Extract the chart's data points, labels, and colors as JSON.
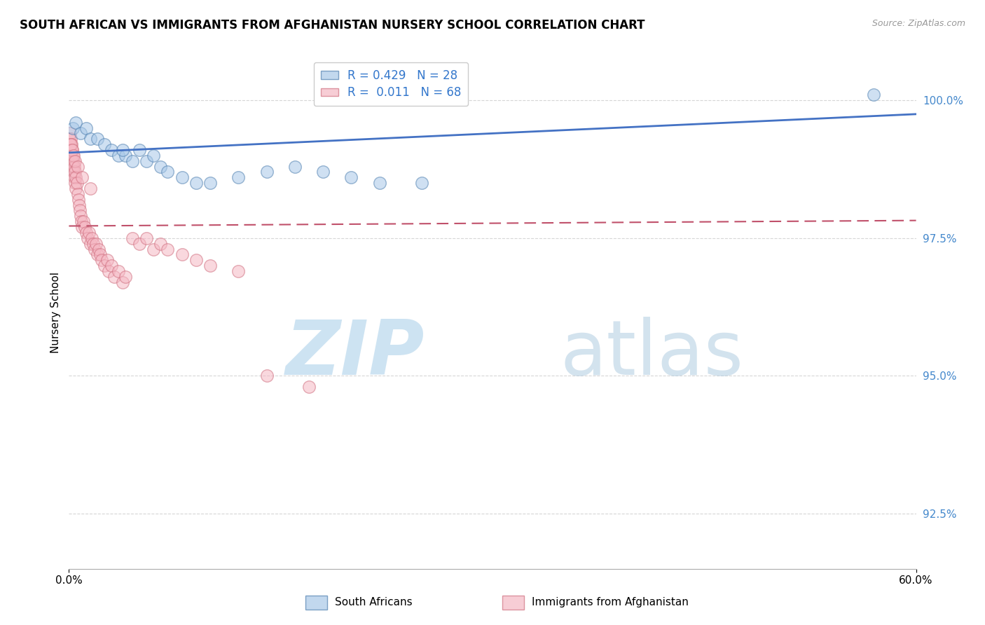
{
  "title": "SOUTH AFRICAN VS IMMIGRANTS FROM AFGHANISTAN NURSERY SCHOOL CORRELATION CHART",
  "source": "Source: ZipAtlas.com",
  "ylabel": "Nursery School",
  "yticks": [
    92.5,
    95.0,
    97.5,
    100.0
  ],
  "ytick_labels": [
    "92.5%",
    "95.0%",
    "97.5%",
    "100.0%"
  ],
  "blue_color": "#a8c8e8",
  "pink_color": "#f5b8c4",
  "trend_blue": "#4472c4",
  "trend_pink": "#c0506a",
  "xlim": [
    0.0,
    60.0
  ],
  "ylim": [
    91.5,
    100.8
  ],
  "background_color": "#ffffff",
  "grid_color": "#cccccc",
  "blue_scatter_x": [
    0.3,
    0.5,
    0.8,
    1.2,
    1.5,
    2.0,
    2.5,
    3.0,
    3.5,
    4.0,
    4.5,
    5.0,
    5.5,
    6.0,
    6.5,
    7.0,
    8.0,
    9.0,
    10.0,
    12.0,
    14.0,
    16.0,
    18.0,
    20.0,
    22.0,
    25.0,
    57.0,
    3.8
  ],
  "blue_scatter_y": [
    99.5,
    99.6,
    99.4,
    99.5,
    99.3,
    99.3,
    99.2,
    99.1,
    99.0,
    99.0,
    98.9,
    99.1,
    98.9,
    99.0,
    98.8,
    98.7,
    98.6,
    98.5,
    98.5,
    98.6,
    98.7,
    98.8,
    98.7,
    98.6,
    98.5,
    98.5,
    100.1,
    99.1
  ],
  "pink_scatter_x": [
    0.05,
    0.08,
    0.1,
    0.12,
    0.15,
    0.18,
    0.2,
    0.22,
    0.25,
    0.28,
    0.3,
    0.32,
    0.35,
    0.38,
    0.4,
    0.42,
    0.45,
    0.48,
    0.5,
    0.55,
    0.6,
    0.65,
    0.7,
    0.75,
    0.8,
    0.85,
    0.9,
    1.0,
    1.1,
    1.2,
    1.3,
    1.4,
    1.5,
    1.6,
    1.7,
    1.8,
    1.9,
    2.0,
    2.1,
    2.2,
    2.3,
    2.5,
    2.7,
    2.8,
    3.0,
    3.2,
    3.5,
    3.8,
    4.0,
    4.5,
    5.0,
    5.5,
    6.0,
    6.5,
    7.0,
    8.0,
    9.0,
    10.0,
    12.0,
    14.0,
    17.0,
    0.15,
    0.25,
    0.35,
    0.45,
    0.6,
    0.9,
    1.5
  ],
  "pink_scatter_y": [
    99.3,
    99.4,
    99.2,
    99.3,
    99.1,
    99.2,
    99.0,
    99.1,
    98.9,
    99.0,
    98.8,
    98.9,
    98.7,
    98.8,
    98.6,
    98.7,
    98.5,
    98.6,
    98.4,
    98.5,
    98.3,
    98.2,
    98.1,
    98.0,
    97.9,
    97.8,
    97.7,
    97.8,
    97.7,
    97.6,
    97.5,
    97.6,
    97.4,
    97.5,
    97.4,
    97.3,
    97.4,
    97.2,
    97.3,
    97.2,
    97.1,
    97.0,
    97.1,
    96.9,
    97.0,
    96.8,
    96.9,
    96.7,
    96.8,
    97.5,
    97.4,
    97.5,
    97.3,
    97.4,
    97.3,
    97.2,
    97.1,
    97.0,
    96.9,
    95.0,
    94.8,
    99.2,
    99.1,
    99.0,
    98.9,
    98.8,
    98.6,
    98.4
  ]
}
